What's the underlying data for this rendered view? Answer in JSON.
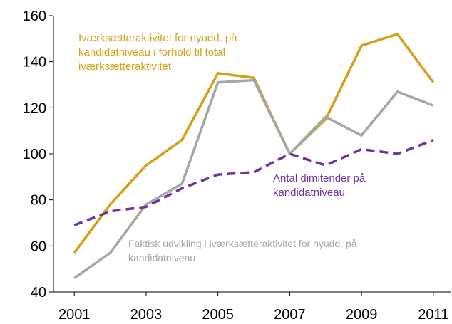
{
  "chart_data": {
    "type": "line",
    "x": [
      2001,
      2002,
      2003,
      2004,
      2005,
      2006,
      2007,
      2008,
      2009,
      2010,
      2011
    ],
    "series": [
      {
        "name": "Iværksætteraktivitet for nyudd. på kandidatniveau i forhold til total iværksætteraktivitet",
        "color": "#d4a017",
        "dashed": false,
        "values": [
          57,
          78,
          95,
          106,
          135,
          133,
          100,
          115,
          147,
          152,
          131
        ]
      },
      {
        "name": "Faktisk udvikling i iværksætteraktivitet for nyudd. på kandidatniveau",
        "color": "#a6a6a6",
        "dashed": false,
        "values": [
          46,
          57,
          78,
          87,
          131,
          132,
          100,
          116,
          108,
          127,
          121
        ]
      },
      {
        "name": "Antal dimitender på kandidatniveau",
        "color": "#7030a0",
        "dashed": true,
        "values": [
          69,
          75,
          77,
          85,
          91,
          92,
          100,
          95,
          102,
          100,
          106
        ]
      }
    ],
    "xlim": [
      2000.42,
      2011.48
    ],
    "xticks": [
      2001,
      2003,
      2005,
      2007,
      2009,
      2011
    ],
    "ylim": [
      40,
      160
    ],
    "yticks": [
      40,
      60,
      80,
      100,
      120,
      140,
      160
    ]
  }
}
